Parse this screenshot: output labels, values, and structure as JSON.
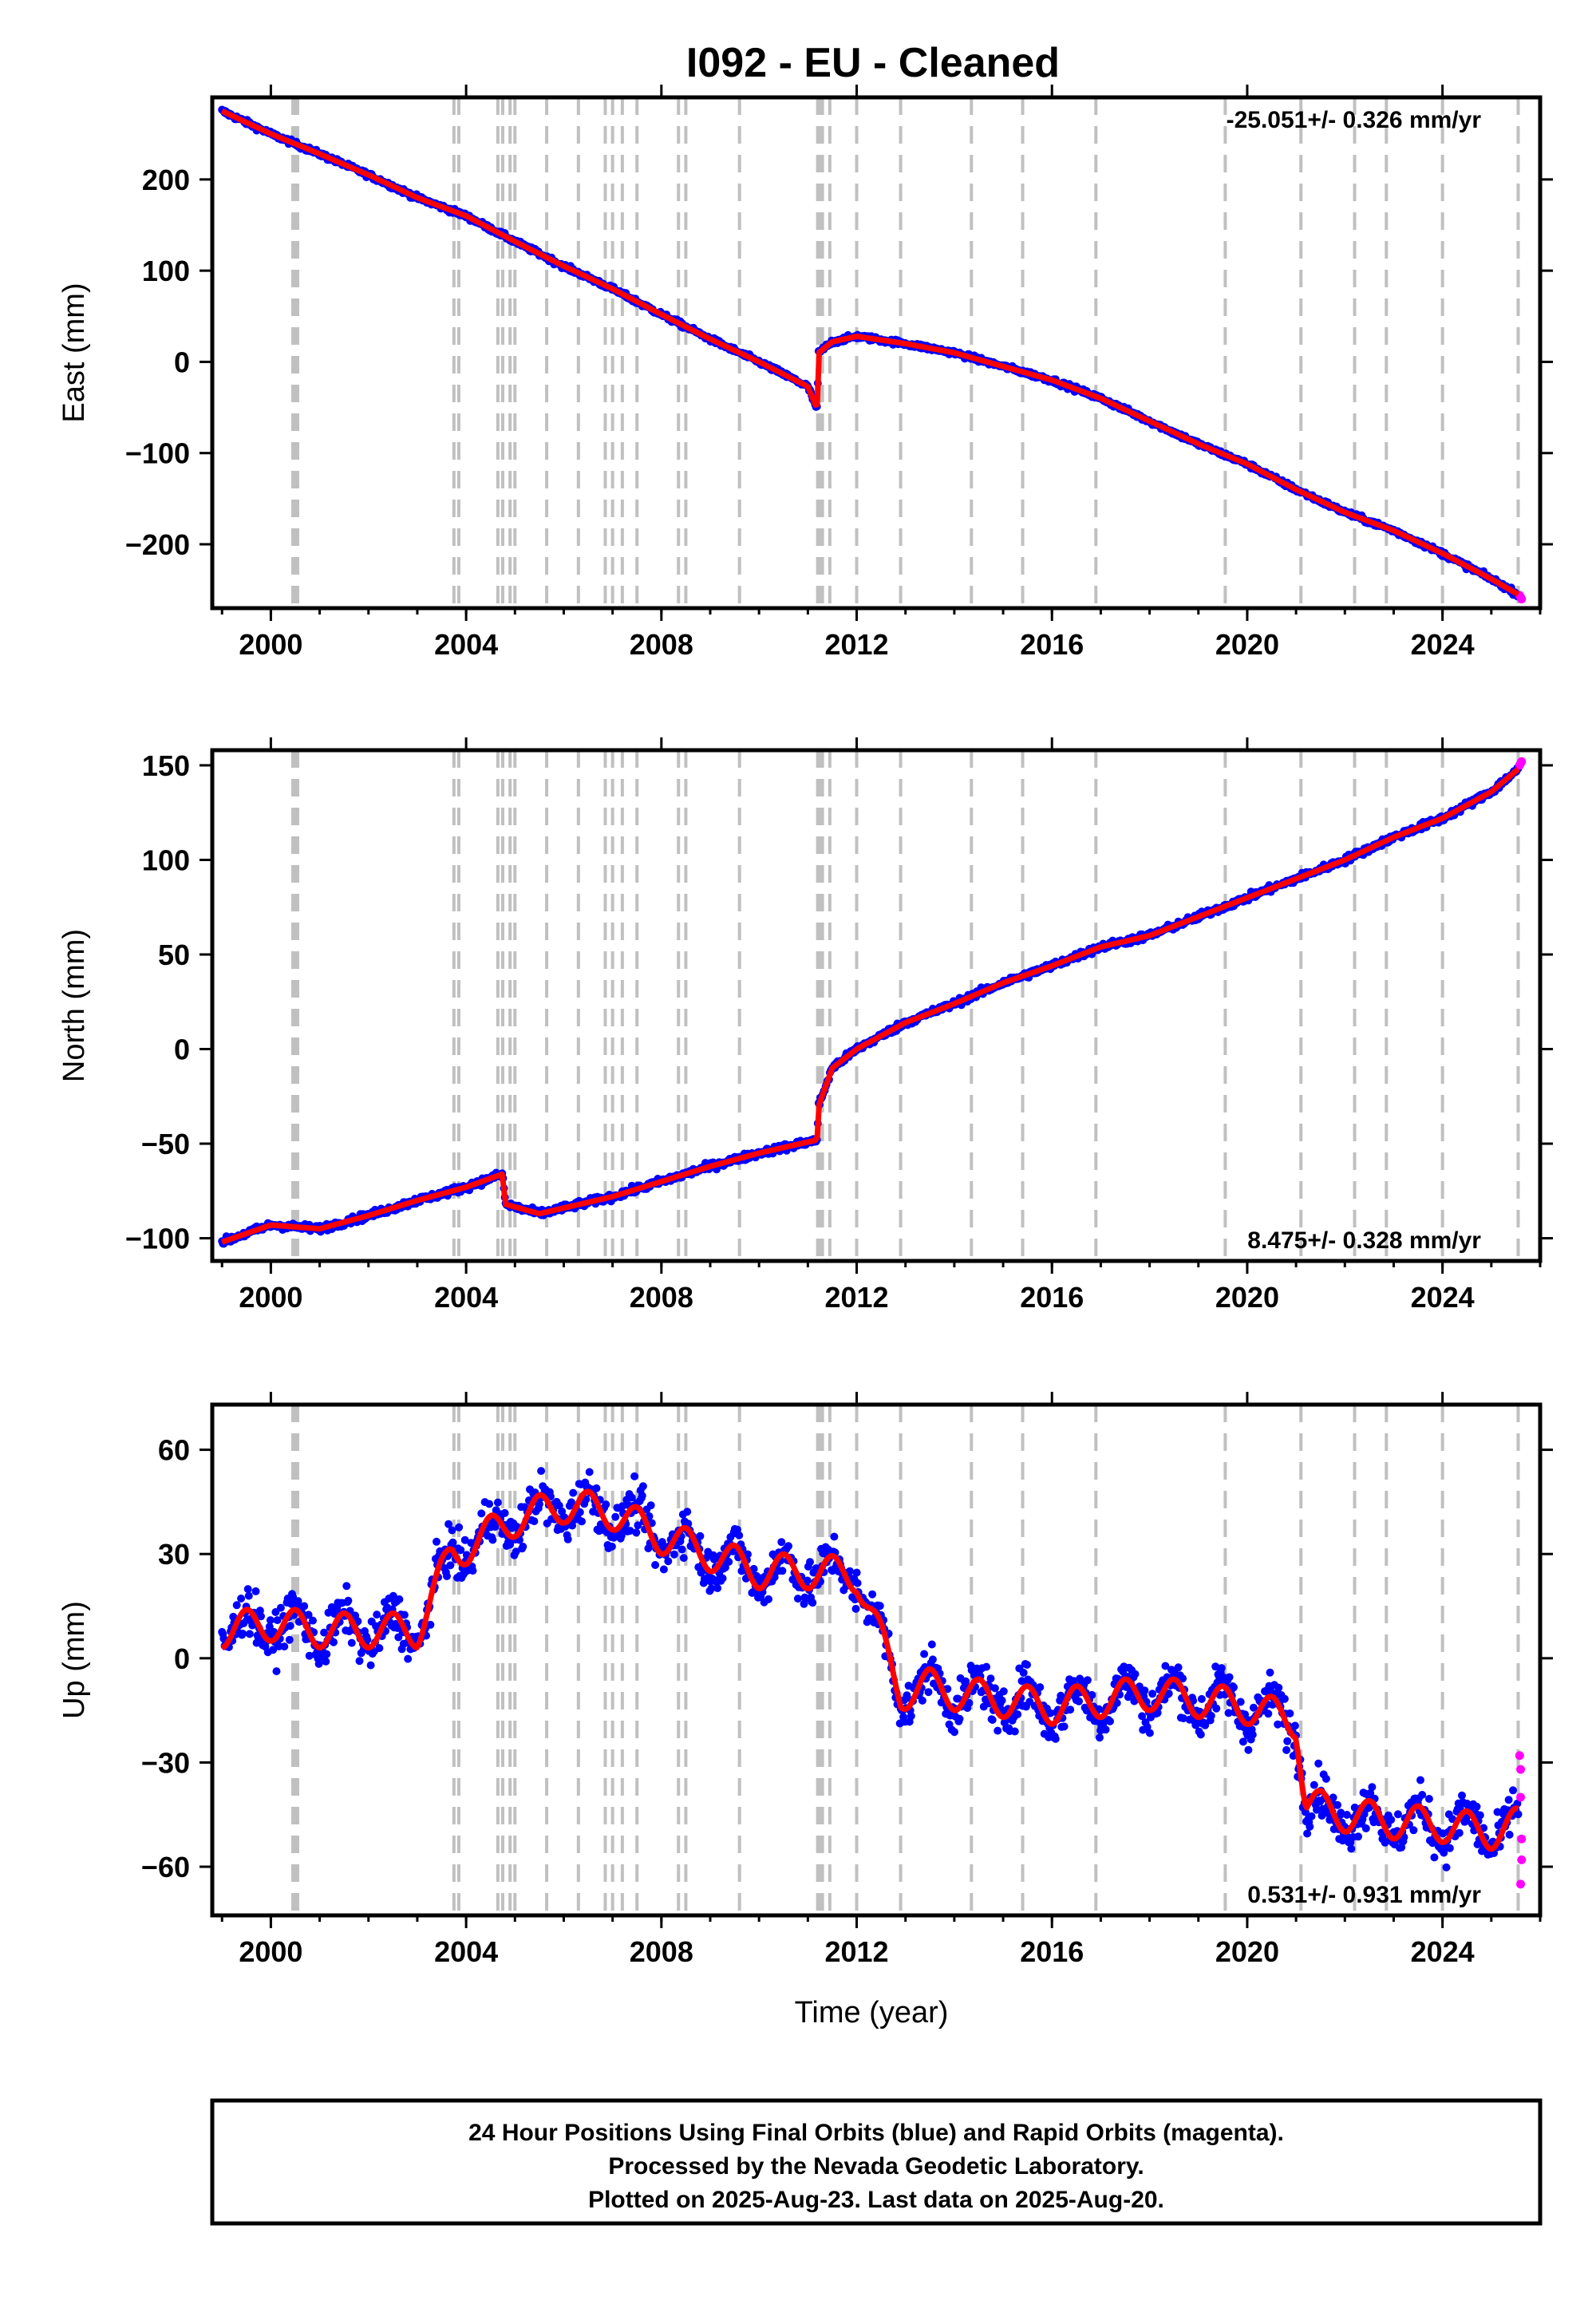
{
  "title": "I092  - EU - Cleaned",
  "colors": {
    "final_orbits": "#0000ff",
    "rapid_orbits": "#ff00ff",
    "model": "#ff0000",
    "event_lines": "#c0c0c0"
  },
  "chart_data": [
    {
      "type": "scatter",
      "panel": "east",
      "ylabel": "East (mm)",
      "xlim": [
        1998.8,
        2026.0
      ],
      "ylim": [
        -270,
        290
      ],
      "x_ticks": [
        2000,
        2004,
        2008,
        2012,
        2016,
        2020,
        2024
      ],
      "x_tick_labels": [
        "2000",
        "2004",
        "2008",
        "2012",
        "2016",
        "2020",
        "2024"
      ],
      "y_ticks": [
        -200,
        -100,
        0,
        100,
        200
      ],
      "y_tick_labels": [
        "−200",
        "−100",
        "0",
        "100",
        "200"
      ],
      "rate_label": "-25.051+/- 0.326 mm/yr",
      "rate_position": "top-right",
      "series": [
        {
          "name": "Final Orbits",
          "color": "#0000ff",
          "x": [
            1999.0,
            2000.0,
            2001.0,
            2002.0,
            2003.0,
            2004.0,
            2005.0,
            2006.0,
            2007.0,
            2008.0,
            2009.0,
            2010.0,
            2011.0,
            2011.19,
            2011.22,
            2011.5,
            2012.0,
            2013.0,
            2014.0,
            2015.0,
            2016.0,
            2017.0,
            2018.0,
            2019.0,
            2020.0,
            2021.0,
            2022.0,
            2023.0,
            2024.0,
            2025.0,
            2025.55
          ],
          "y": [
            275,
            250,
            228,
            205,
            180,
            160,
            132,
            105,
            80,
            52,
            25,
            0,
            -27,
            -52,
            10,
            22,
            28,
            20,
            10,
            -5,
            -20,
            -40,
            -65,
            -90,
            -112,
            -140,
            -165,
            -185,
            -210,
            -238,
            -255
          ]
        },
        {
          "name": "Rapid Orbits",
          "color": "#ff00ff",
          "x": [
            2025.58,
            2025.6,
            2025.62
          ],
          "y": [
            -256,
            -258,
            -260
          ]
        },
        {
          "name": "Model",
          "color": "#ff0000",
          "x": [],
          "y": []
        }
      ]
    },
    {
      "type": "scatter",
      "panel": "north",
      "ylabel": "North (mm)",
      "xlim": [
        1998.8,
        2026.0
      ],
      "ylim": [
        -112,
        158
      ],
      "x_ticks": [
        2000,
        2004,
        2008,
        2012,
        2016,
        2020,
        2024
      ],
      "x_tick_labels": [
        "2000",
        "2004",
        "2008",
        "2012",
        "2016",
        "2020",
        "2024"
      ],
      "y_ticks": [
        -100,
        -50,
        0,
        50,
        100,
        150
      ],
      "y_tick_labels": [
        "−100",
        "−50",
        "0",
        "50",
        "100",
        "150"
      ],
      "rate_label": "8.475+/- 0.328 mm/yr",
      "rate_position": "bottom-right",
      "series": [
        {
          "name": "Final Orbits",
          "color": "#0000ff",
          "x": [
            1999.0,
            2000.0,
            2001.0,
            2002.0,
            2003.0,
            2004.0,
            2004.75,
            2004.8,
            2005.5,
            2006.0,
            2007.0,
            2008.0,
            2009.0,
            2010.0,
            2011.19,
            2011.22,
            2011.5,
            2012.0,
            2013.0,
            2014.0,
            2015.0,
            2016.0,
            2017.0,
            2018.0,
            2019.0,
            2020.0,
            2021.0,
            2022.0,
            2023.0,
            2024.0,
            2025.0,
            2025.55
          ],
          "y": [
            -102,
            -93,
            -95,
            -88,
            -80,
            -73,
            -66,
            -82,
            -87,
            -84,
            -78,
            -70,
            -62,
            -55,
            -48,
            -30,
            -10,
            0,
            14,
            24,
            35,
            44,
            54,
            60,
            70,
            80,
            90,
            100,
            112,
            122,
            136,
            148
          ]
        },
        {
          "name": "Rapid Orbits",
          "color": "#ff00ff",
          "x": [
            2025.58,
            2025.6,
            2025.62
          ],
          "y": [
            150,
            151,
            152
          ]
        },
        {
          "name": "Model",
          "color": "#ff0000",
          "x": [],
          "y": []
        }
      ]
    },
    {
      "type": "scatter",
      "panel": "up",
      "ylabel": "Up (mm)",
      "xlabel": "Time (year)",
      "xlim": [
        1998.8,
        2026.0
      ],
      "ylim": [
        -74,
        73
      ],
      "x_ticks": [
        2000,
        2004,
        2008,
        2012,
        2016,
        2020,
        2024
      ],
      "x_tick_labels": [
        "2000",
        "2004",
        "2008",
        "2012",
        "2016",
        "2020",
        "2024"
      ],
      "y_ticks": [
        -60,
        -30,
        0,
        30,
        60
      ],
      "y_tick_labels": [
        "−60",
        "−30",
        "0",
        "30",
        "60"
      ],
      "rate_label": "0.531+/- 0.931 mm/yr",
      "rate_position": "bottom-right",
      "series": [
        {
          "name": "Final Orbits",
          "color": "#0000ff",
          "x": [
            1999.0,
            2000.0,
            2001.0,
            2002.0,
            2003.0,
            2003.7,
            2004.0,
            2005.0,
            2006.0,
            2007.0,
            2008.0,
            2009.0,
            2010.0,
            2011.0,
            2012.0,
            2012.9,
            2013.5,
            2014.0,
            2015.0,
            2016.0,
            2017.0,
            2018.0,
            2019.0,
            2020.0,
            2021.0,
            2021.2,
            2022.0,
            2023.0,
            2024.0,
            2025.0,
            2025.55
          ],
          "y": [
            8,
            10,
            8,
            8,
            8,
            30,
            32,
            40,
            44,
            42,
            35,
            30,
            25,
            25,
            24,
            -10,
            -8,
            -10,
            -12,
            -14,
            -12,
            -10,
            -12,
            -14,
            -18,
            -42,
            -45,
            -47,
            -48,
            -50,
            -48
          ]
        },
        {
          "name": "Rapid Orbits",
          "color": "#ff00ff",
          "x": [
            2025.58,
            2025.6,
            2025.6,
            2025.62,
            2025.62,
            2025.6
          ],
          "y": [
            -28,
            -32,
            -40,
            -52,
            -58,
            -65
          ]
        },
        {
          "name": "Model",
          "color": "#ff0000",
          "x": [],
          "y": []
        }
      ]
    }
  ],
  "event_lines": [
    2000.5,
    2003.75,
    2003.85,
    2004.65,
    2004.75,
    2004.9,
    2005.0,
    2005.65,
    2006.3,
    2006.85,
    2007.0,
    2007.2,
    2007.5,
    2008.35,
    2008.5,
    2009.6,
    2011.25,
    2011.45,
    2012.0,
    2012.9,
    2014.35,
    2015.4,
    2016.9,
    2019.55,
    2021.1,
    2022.2,
    2022.85,
    2024.0,
    2025.55
  ],
  "event_lines_thick": [
    2000.5,
    2011.22
  ],
  "caption": {
    "line1": "24 Hour Positions Using Final Orbits (blue) and Rapid Orbits (magenta).",
    "line2": "Processed by the Nevada Geodetic Laboratory.",
    "line3": "Plotted on 2025-Aug-23. Last data on 2025-Aug-20."
  }
}
